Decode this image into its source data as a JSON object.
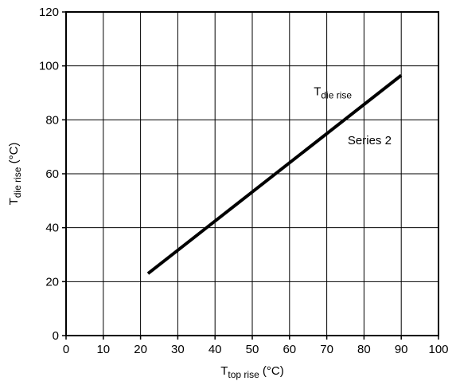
{
  "chart_data": {
    "type": "line",
    "xlabel": {
      "main": "T",
      "sub": "top rise",
      "unit": " (°C)"
    },
    "ylabel": {
      "main": "T",
      "sub": "die rise",
      "unit": " (°C)"
    },
    "xlim": [
      0,
      100
    ],
    "ylim": [
      0,
      120
    ],
    "x_ticks": [
      "0",
      "10",
      "20",
      "30",
      "40",
      "50",
      "60",
      "70",
      "80",
      "90",
      "100"
    ],
    "y_ticks": [
      "0",
      "20",
      "40",
      "60",
      "80",
      "100",
      "120"
    ],
    "grid": true,
    "series": [
      {
        "name": {
          "main": "T",
          "sub": "die rise"
        },
        "x": [
          22,
          90
        ],
        "y": [
          23,
          96.5
        ],
        "color": "#000000"
      }
    ],
    "annotations": [
      {
        "text": "Series 2",
        "x": 81.5,
        "y": 71
      }
    ]
  }
}
